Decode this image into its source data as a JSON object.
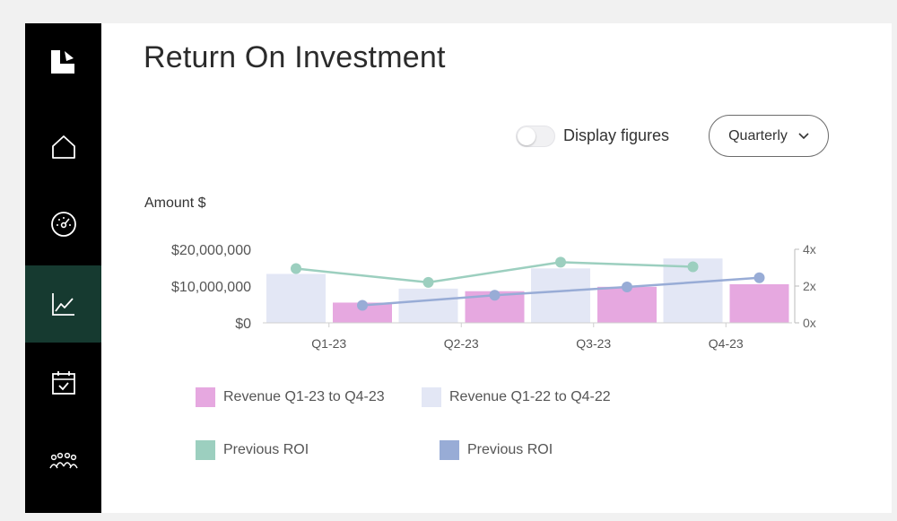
{
  "page": {
    "title": "Return On Investment"
  },
  "controls": {
    "toggle_label": "Display figures",
    "toggle_on": false,
    "period_value": "Quarterly"
  },
  "sidebar": {
    "items": [
      {
        "icon": "home-icon",
        "active": false
      },
      {
        "icon": "gauge-icon",
        "active": false
      },
      {
        "icon": "chart-line-icon",
        "active": true
      },
      {
        "icon": "calendar-check-icon",
        "active": false
      },
      {
        "icon": "team-icon",
        "active": false
      }
    ]
  },
  "colors": {
    "revenue_2023": "#e6a8e0",
    "revenue_2022": "#e3e7f5",
    "roi_green": "#9ccfbf",
    "roi_blue": "#98acd6",
    "active_nav": "#163a30"
  },
  "chart_data": {
    "type": "bar",
    "ylabel": "Amount $",
    "categories": [
      "Q1-23",
      "Q2-23",
      "Q3-23",
      "Q4-23"
    ],
    "ylim": [
      0,
      20000000
    ],
    "yticks": [
      "$0",
      "$10,000,000",
      "$20,000,000"
    ],
    "y2lim": [
      0,
      4
    ],
    "y2ticks": [
      "0x",
      "2x",
      "4x"
    ],
    "series": [
      {
        "name": "Revenue Q1-22 to Q4-22",
        "kind": "bar",
        "axis": "left",
        "values": [
          13300000,
          9300000,
          14800000,
          17500000
        ]
      },
      {
        "name": "Revenue Q1-23 to Q4-23",
        "kind": "bar",
        "axis": "left",
        "values": [
          5500000,
          8600000,
          9800000,
          10500000
        ]
      },
      {
        "name": "Previous ROI",
        "kind": "line",
        "axis": "right",
        "values": [
          2.95,
          2.2,
          3.3,
          3.05
        ]
      },
      {
        "name": "Previous ROI",
        "kind": "line",
        "axis": "right",
        "values": [
          0.95,
          1.5,
          1.95,
          2.45
        ]
      }
    ],
    "grid": false,
    "legend_position": "bottom"
  }
}
